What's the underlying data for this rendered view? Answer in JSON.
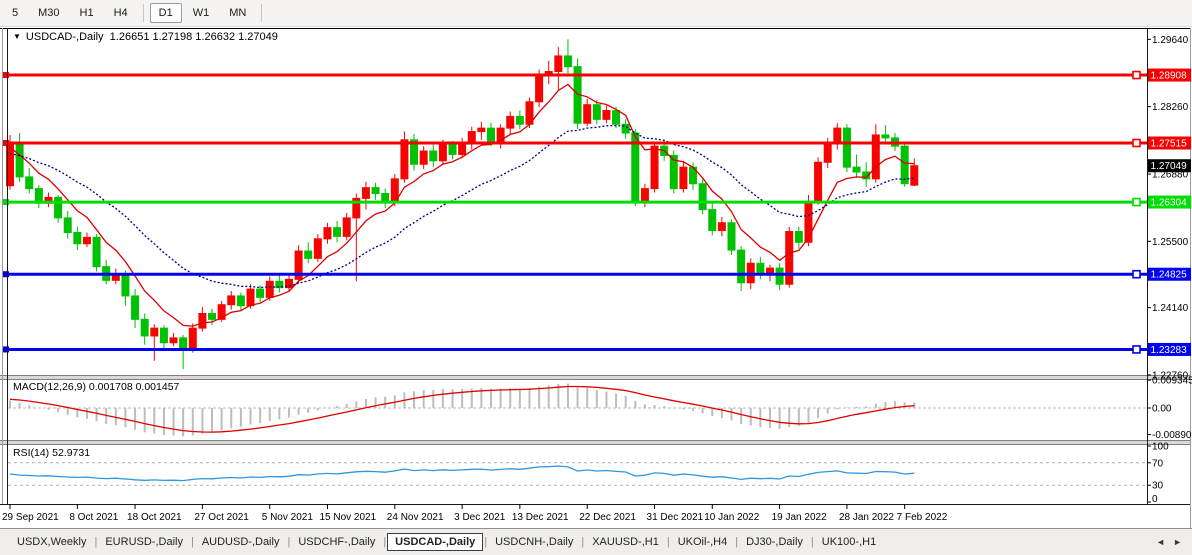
{
  "toolbar": {
    "buttons": [
      {
        "label": "5"
      },
      {
        "label": "M30"
      },
      {
        "label": "H1"
      },
      {
        "label": "H4"
      },
      {
        "sep": true
      },
      {
        "label": "D1",
        "active": true
      },
      {
        "label": "W1"
      },
      {
        "label": "MN"
      },
      {
        "sep": true
      }
    ]
  },
  "chart": {
    "dropdown_icon": "▼",
    "title_symbol": "USDCAD-,Daily",
    "title_ohlc": "1.26651 1.27198 1.26632 1.27049"
  },
  "chart_data": {
    "type": "candlestick",
    "symbol": "USDCAD-",
    "timeframe": "Daily",
    "ohlc_current": {
      "open": 1.26651,
      "high": 1.27198,
      "low": 1.26632,
      "close": 1.27049
    },
    "ylim": [
      1.2262,
      1.298
    ],
    "grid": "off",
    "bull_color": "#f50400",
    "bear_color": "#00c104",
    "price_ticks": [
      {
        "label": "1.29640",
        "value": 1.2964
      },
      {
        "label": "1.28260",
        "value": 1.2826
      },
      {
        "label": "1.26880",
        "value": 1.2688
      },
      {
        "label": "1.25500",
        "value": 1.255
      },
      {
        "label": "1.24140",
        "value": 1.2414
      },
      {
        "label": "1.22760",
        "value": 1.2276
      }
    ],
    "x_ticks": [
      {
        "i": 0,
        "label": "29 Sep 2021"
      },
      {
        "i": 7,
        "label": "8 Oct 2021"
      },
      {
        "i": 13,
        "label": "18 Oct 2021"
      },
      {
        "i": 20,
        "label": "27 Oct 2021"
      },
      {
        "i": 27,
        "label": "5 Nov 2021"
      },
      {
        "i": 33,
        "label": "15 Nov 2021"
      },
      {
        "i": 40,
        "label": "24 Nov 2021"
      },
      {
        "i": 47,
        "label": "3 Dec 2021"
      },
      {
        "i": 53,
        "label": "13 Dec 2021"
      },
      {
        "i": 60,
        "label": "22 Dec 2021"
      },
      {
        "i": 67,
        "label": "31 Dec 2021"
      },
      {
        "i": 73,
        "label": "10 Jan 2022"
      },
      {
        "i": 80,
        "label": "19 Jan 2022"
      },
      {
        "i": 87,
        "label": "28 Jan 2022"
      },
      {
        "i": 93,
        "label": "7 Feb 2022"
      }
    ],
    "hlines": [
      {
        "value": 1.28908,
        "label": "1.28908",
        "color": "#f60000"
      },
      {
        "value": 1.27515,
        "label": "1.27515",
        "color": "#f60000"
      },
      {
        "value": 1.26304,
        "label": "1.26304",
        "color": "#00dd00"
      },
      {
        "value": 1.24825,
        "label": "1.24825",
        "color": "#0202f0"
      },
      {
        "value": 1.23283,
        "label": "1.23283",
        "color": "#0202f0"
      }
    ],
    "current_price": {
      "value": 1.27049,
      "label": "1.27049",
      "color": "#000000"
    },
    "moving_averages": [
      {
        "name": "fast-ma",
        "color": "#dd0000",
        "alpha": 0.25,
        "seed": 1.274,
        "dashed": false
      },
      {
        "name": "slow-ma",
        "color": "#000080",
        "alpha": 0.09,
        "seed": 1.2728,
        "dashed": true
      }
    ],
    "candles": [
      [
        1.2664,
        1.2768,
        1.2656,
        1.275
      ],
      [
        1.275,
        1.2772,
        1.2672,
        1.2682
      ],
      [
        1.2682,
        1.27,
        1.2648,
        1.2658
      ],
      [
        1.2658,
        1.2665,
        1.2618,
        1.2628
      ],
      [
        1.2628,
        1.265,
        1.262,
        1.264
      ],
      [
        1.264,
        1.2645,
        1.2588,
        1.2598
      ],
      [
        1.2598,
        1.2612,
        1.2556,
        1.2568
      ],
      [
        1.2568,
        1.258,
        1.2532,
        1.2545
      ],
      [
        1.2545,
        1.2568,
        1.2538,
        1.2558
      ],
      [
        1.2558,
        1.2565,
        1.2488,
        1.2498
      ],
      [
        1.2498,
        1.2512,
        1.2462,
        1.247
      ],
      [
        1.247,
        1.2494,
        1.2462,
        1.2484
      ],
      [
        1.2484,
        1.249,
        1.2418,
        1.2438
      ],
      [
        1.2438,
        1.2452,
        1.2372,
        1.239
      ],
      [
        1.239,
        1.2402,
        1.2338,
        1.2356
      ],
      [
        1.2356,
        1.238,
        1.2305,
        1.2372
      ],
      [
        1.2372,
        1.2378,
        1.2328,
        1.2342
      ],
      [
        1.2342,
        1.2362,
        1.2335,
        1.2352
      ],
      [
        1.2352,
        1.2358,
        1.2288,
        1.233
      ],
      [
        1.233,
        1.2382,
        1.2322,
        1.2372
      ],
      [
        1.2372,
        1.2415,
        1.2365,
        1.2402
      ],
      [
        1.2402,
        1.2412,
        1.2378,
        1.239
      ],
      [
        1.239,
        1.2428,
        1.2385,
        1.242
      ],
      [
        1.242,
        1.2448,
        1.241,
        1.2438
      ],
      [
        1.2438,
        1.2445,
        1.2408,
        1.2418
      ],
      [
        1.2418,
        1.2462,
        1.2412,
        1.2452
      ],
      [
        1.2452,
        1.246,
        1.2425,
        1.2435
      ],
      [
        1.2435,
        1.2478,
        1.2428,
        1.2468
      ],
      [
        1.2468,
        1.248,
        1.2445,
        1.2455
      ],
      [
        1.2455,
        1.2482,
        1.2448,
        1.2472
      ],
      [
        1.2472,
        1.2542,
        1.2465,
        1.253
      ],
      [
        1.253,
        1.2548,
        1.2505,
        1.2515
      ],
      [
        1.2515,
        1.2565,
        1.2508,
        1.2555
      ],
      [
        1.2555,
        1.2588,
        1.2545,
        1.2578
      ],
      [
        1.2578,
        1.2592,
        1.2548,
        1.256
      ],
      [
        1.256,
        1.2608,
        1.2552,
        1.2598
      ],
      [
        1.2598,
        1.2648,
        1.2468,
        1.2638
      ],
      [
        1.2638,
        1.2672,
        1.2615,
        1.266
      ],
      [
        1.266,
        1.267,
        1.2635,
        1.2648
      ],
      [
        1.2648,
        1.2658,
        1.2618,
        1.263
      ],
      [
        1.263,
        1.2688,
        1.2622,
        1.2678
      ],
      [
        1.2678,
        1.2775,
        1.267,
        1.2758
      ],
      [
        1.2758,
        1.277,
        1.2695,
        1.2708
      ],
      [
        1.2708,
        1.2745,
        1.2698,
        1.2735
      ],
      [
        1.2735,
        1.2748,
        1.2702,
        1.2715
      ],
      [
        1.2715,
        1.2758,
        1.2708,
        1.2748
      ],
      [
        1.2748,
        1.2756,
        1.2718,
        1.2728
      ],
      [
        1.2728,
        1.2762,
        1.272,
        1.275
      ],
      [
        1.275,
        1.2785,
        1.2738,
        1.2775
      ],
      [
        1.2775,
        1.2795,
        1.2758,
        1.2782
      ],
      [
        1.2782,
        1.2793,
        1.2745,
        1.2752
      ],
      [
        1.2752,
        1.279,
        1.274,
        1.2782
      ],
      [
        1.2782,
        1.2816,
        1.277,
        1.2806
      ],
      [
        1.2806,
        1.2818,
        1.278,
        1.279
      ],
      [
        1.279,
        1.2845,
        1.2782,
        1.2836
      ],
      [
        1.2836,
        1.2902,
        1.2825,
        1.289
      ],
      [
        1.289,
        1.292,
        1.2872,
        1.2898
      ],
      [
        1.2898,
        1.2948,
        1.286,
        1.293
      ],
      [
        1.293,
        1.2964,
        1.2895,
        1.2908
      ],
      [
        1.2908,
        1.2925,
        1.278,
        1.2792
      ],
      [
        1.2792,
        1.2842,
        1.2786,
        1.283
      ],
      [
        1.283,
        1.284,
        1.279,
        1.28
      ],
      [
        1.28,
        1.2828,
        1.2792,
        1.2818
      ],
      [
        1.2818,
        1.2826,
        1.2782,
        1.279
      ],
      [
        1.279,
        1.28,
        1.276,
        1.2772
      ],
      [
        1.2772,
        1.278,
        1.2622,
        1.2632
      ],
      [
        1.2632,
        1.2668,
        1.262,
        1.2658
      ],
      [
        1.2658,
        1.2752,
        1.265,
        1.2745
      ],
      [
        1.2745,
        1.2756,
        1.2715,
        1.2726
      ],
      [
        1.2726,
        1.2736,
        1.2648,
        1.2658
      ],
      [
        1.2658,
        1.2715,
        1.265,
        1.2702
      ],
      [
        1.2702,
        1.2712,
        1.2655,
        1.2668
      ],
      [
        1.2668,
        1.2678,
        1.2605,
        1.2615
      ],
      [
        1.2615,
        1.2628,
        1.2562,
        1.2572
      ],
      [
        1.2572,
        1.26,
        1.256,
        1.2588
      ],
      [
        1.2588,
        1.2595,
        1.2522,
        1.2532
      ],
      [
        1.2532,
        1.254,
        1.2448,
        1.2465
      ],
      [
        1.2465,
        1.2515,
        1.2452,
        1.2505
      ],
      [
        1.2505,
        1.2518,
        1.2472,
        1.2482
      ],
      [
        1.2482,
        1.2502,
        1.2468,
        1.2495
      ],
      [
        1.2495,
        1.2505,
        1.245,
        1.2462
      ],
      [
        1.2462,
        1.258,
        1.2455,
        1.257
      ],
      [
        1.257,
        1.258,
        1.2535,
        1.2548
      ],
      [
        1.2548,
        1.2645,
        1.254,
        1.2632
      ],
      [
        1.2632,
        1.2722,
        1.2625,
        1.2712
      ],
      [
        1.2712,
        1.2762,
        1.27,
        1.275
      ],
      [
        1.275,
        1.2792,
        1.2738,
        1.2782
      ],
      [
        1.2782,
        1.279,
        1.2692,
        1.2702
      ],
      [
        1.2702,
        1.2728,
        1.268,
        1.2692
      ],
      [
        1.2692,
        1.2712,
        1.2662,
        1.2678
      ],
      [
        1.2678,
        1.279,
        1.267,
        1.2768
      ],
      [
        1.2768,
        1.2788,
        1.2752,
        1.2762
      ],
      [
        1.2762,
        1.2772,
        1.2735,
        1.2745
      ],
      [
        1.2745,
        1.2752,
        1.2662,
        1.2668
      ],
      [
        1.26651,
        1.27198,
        1.26632,
        1.27049
      ]
    ],
    "macd": {
      "label": "MACD(12,26,9)",
      "values_text": "0.001708 0.001457",
      "fast": 12,
      "slow": 26,
      "signal": 9,
      "axis_ticks": [
        {
          "label": "0.009345",
          "value": 0.009345
        },
        {
          "label": "0.00",
          "value": 0
        },
        {
          "label": "-0.00890",
          "value": -0.0089
        }
      ],
      "histogram_color": "#bdbdbd",
      "signal_color": "#e00000"
    },
    "rsi": {
      "label": "RSI(14)",
      "value_text": "52.9731",
      "period": 14,
      "axis_ticks": [
        {
          "label": "100",
          "value": 100
        },
        {
          "label": "70",
          "value": 70
        },
        {
          "label": "30",
          "value": 30
        },
        {
          "label": "0",
          "value": 0
        }
      ],
      "levels": [
        70,
        30
      ],
      "color": "#2f96e0"
    }
  },
  "tabbar": {
    "separator": "|",
    "tabs": [
      {
        "label": "USDX,Weekly"
      },
      {
        "label": "EURUSD-,Daily"
      },
      {
        "label": "AUDUSD-,Daily"
      },
      {
        "label": "USDCHF-,Daily"
      },
      {
        "label": "USDCAD-,Daily",
        "active": true
      },
      {
        "label": "USDCNH-,Daily"
      },
      {
        "label": "XAUUSD-,H1"
      },
      {
        "label": "UKOil-,H4"
      },
      {
        "label": "DJ30-,Daily"
      },
      {
        "label": "UK100-,H1"
      }
    ],
    "arrows": {
      "prev": "◄",
      "next": "►"
    }
  }
}
